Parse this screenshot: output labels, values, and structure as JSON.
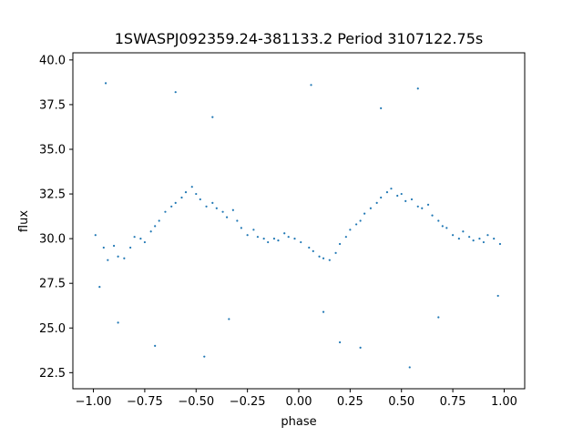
{
  "chart_data": {
    "type": "scatter",
    "title": "1SWASPJ092359.24-381133.2 Period 3107122.75s",
    "xlabel": "phase",
    "ylabel": "flux",
    "xlim": [
      -1.1,
      1.1
    ],
    "ylim": [
      21.6,
      40.4
    ],
    "grid": false,
    "legend": "none",
    "marker_color": "#1f77b4",
    "x_ticks": [
      -1.0,
      -0.75,
      -0.5,
      -0.25,
      0.0,
      0.25,
      0.5,
      0.75,
      1.0
    ],
    "x_tick_labels": [
      "−1.00",
      "−0.75",
      "−0.50",
      "−0.25",
      "0.00",
      "0.25",
      "0.50",
      "0.75",
      "1.00"
    ],
    "y_ticks": [
      22.5,
      25.0,
      27.5,
      30.0,
      32.5,
      35.0,
      37.5,
      40.0
    ],
    "y_tick_labels": [
      "22.5",
      "25.0",
      "27.5",
      "30.0",
      "32.5",
      "35.0",
      "37.5",
      "40.0"
    ],
    "series": [
      {
        "x": [
          -0.99,
          -0.95,
          -0.93,
          -0.9,
          -0.88,
          -0.85,
          -0.82,
          -0.8,
          -0.77,
          -0.75,
          -0.72,
          -0.7,
          -0.68,
          -0.65,
          -0.62,
          -0.6,
          -0.57,
          -0.55,
          -0.52,
          -0.5,
          -0.48,
          -0.45,
          -0.42,
          -0.4,
          -0.37,
          -0.35,
          -0.32,
          -0.3,
          -0.28,
          -0.25,
          -0.22,
          -0.2,
          -0.17,
          -0.15,
          -0.12,
          -0.1,
          -0.07,
          -0.05,
          -0.02,
          0.01,
          0.05,
          0.07,
          0.1,
          0.12,
          0.15,
          0.18,
          0.2,
          0.23,
          0.25,
          0.28,
          0.3,
          0.32,
          0.35,
          0.38,
          0.4,
          0.43,
          0.45,
          0.48,
          0.5,
          0.52,
          0.55,
          0.58,
          0.6,
          0.63,
          0.65,
          0.68,
          0.7,
          0.72,
          0.75,
          0.78,
          0.8,
          0.83,
          0.85,
          0.88,
          0.9,
          0.92,
          0.95,
          0.98,
          -0.94,
          -0.6,
          -0.42,
          0.06,
          0.4,
          0.58,
          -0.88,
          -0.7,
          -0.46,
          0.12,
          0.3,
          0.54,
          -0.97,
          -0.34,
          0.2,
          0.68,
          0.97
        ],
        "y": [
          30.2,
          29.5,
          28.8,
          29.6,
          29.0,
          28.9,
          29.5,
          30.1,
          30.0,
          29.8,
          30.4,
          30.7,
          31.0,
          31.5,
          31.8,
          32.0,
          32.3,
          32.6,
          32.9,
          32.5,
          32.2,
          31.8,
          32.0,
          31.7,
          31.5,
          31.2,
          31.6,
          31.0,
          30.6,
          30.2,
          30.5,
          30.1,
          30.0,
          29.8,
          30.0,
          29.9,
          30.3,
          30.1,
          30.0,
          29.8,
          29.5,
          29.3,
          29.0,
          28.9,
          28.8,
          29.2,
          29.7,
          30.1,
          30.5,
          30.8,
          31.0,
          31.4,
          31.7,
          32.0,
          32.3,
          32.6,
          32.8,
          32.4,
          32.5,
          32.1,
          32.2,
          31.8,
          31.7,
          31.9,
          31.3,
          31.0,
          30.7,
          30.6,
          30.2,
          30.0,
          30.4,
          30.1,
          29.9,
          30.0,
          29.8,
          30.2,
          30.0,
          29.7,
          38.7,
          38.2,
          36.8,
          38.6,
          37.3,
          38.4,
          25.3,
          24.0,
          23.4,
          25.9,
          23.9,
          22.8,
          27.3,
          25.5,
          24.2,
          25.6,
          26.8
        ],
        "name": ""
      }
    ]
  }
}
